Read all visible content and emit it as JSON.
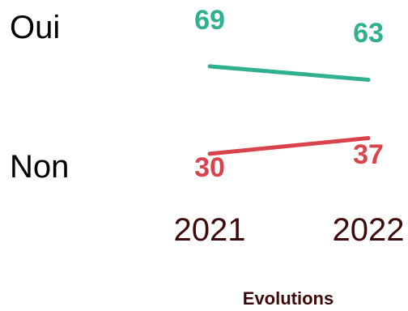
{
  "chart_data": {
    "type": "line",
    "x": [
      "2021",
      "2022"
    ],
    "series": [
      {
        "name": "Oui",
        "values": [
          69,
          63
        ],
        "color": "#2fb08f"
      },
      {
        "name": "Non",
        "values": [
          30,
          37
        ],
        "color": "#d9434c"
      }
    ],
    "xlabel": "Evolutions",
    "ylabel": "",
    "title": "",
    "legend": "left",
    "grid": false
  }
}
